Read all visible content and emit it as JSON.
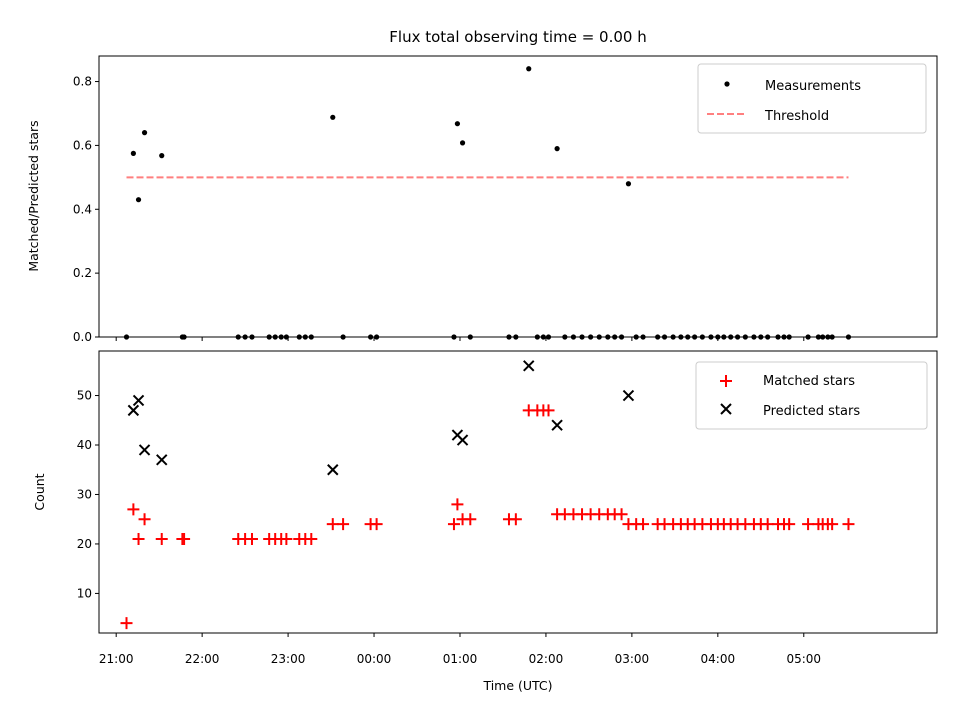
{
  "chart_data": {
    "title": "Flux total observing time = 0.00 h",
    "xlabel": "Time (UTC)",
    "x_unit": "hours since 00:00 UTC (negative = previous evening)",
    "xlim": [
      -3.2,
      6.55
    ],
    "x_ticks": [
      {
        "x": -3,
        "label": "21:00"
      },
      {
        "x": -2,
        "label": "22:00"
      },
      {
        "x": -1,
        "label": "23:00"
      },
      {
        "x": 0,
        "label": "00:00"
      },
      {
        "x": 1,
        "label": "01:00"
      },
      {
        "x": 2,
        "label": "02:00"
      },
      {
        "x": 3,
        "label": "03:00"
      },
      {
        "x": 4,
        "label": "04:00"
      },
      {
        "x": 5,
        "label": "05:00"
      }
    ],
    "panels": [
      {
        "type": "scatter",
        "ylabel": "Matched/Predicted stars",
        "ylim": [
          0,
          0.88
        ],
        "y_ticks": [
          0,
          0.2,
          0.4,
          0.6,
          0.8
        ],
        "legend_position": "top-right",
        "series": [
          {
            "name": "Measurements",
            "marker": "dot",
            "color": "#000000",
            "x": [
              -2.88,
              -2.8,
              -2.74,
              -2.67,
              -2.47,
              -2.23,
              -2.21,
              -1.58,
              -1.5,
              -1.42,
              -1.22,
              -1.15,
              -1.08,
              -1.02,
              -0.87,
              -0.8,
              -0.73,
              -0.48,
              -0.36,
              -0.04,
              0.03,
              0.93,
              0.97,
              1.03,
              1.12,
              1.57,
              1.65,
              1.8,
              1.9,
              1.97,
              2.03,
              2.13,
              2.22,
              2.32,
              2.42,
              2.52,
              2.62,
              2.72,
              2.8,
              2.88,
              2.96,
              3.05,
              3.13,
              3.3,
              3.38,
              3.48,
              3.57,
              3.65,
              3.73,
              3.82,
              3.92,
              4.0,
              4.07,
              4.15,
              4.23,
              4.32,
              4.42,
              4.5,
              4.58,
              4.7,
              4.77,
              4.83,
              5.05,
              5.17,
              5.22,
              5.28,
              5.33,
              5.52
            ],
            "y": [
              0,
              0.575,
              0.43,
              0.64,
              0.568,
              0,
              0,
              0,
              0,
              0,
              0,
              0,
              0,
              0,
              0,
              0,
              0,
              0.688,
              0,
              0,
              0,
              0,
              0.668,
              0.608,
              0,
              0,
              0,
              0.84,
              0,
              0,
              0,
              0.59,
              0,
              0,
              0,
              0,
              0,
              0,
              0,
              0,
              0.48,
              0,
              0,
              0,
              0,
              0,
              0,
              0,
              0,
              0,
              0,
              0,
              0,
              0,
              0,
              0,
              0,
              0,
              0,
              0,
              0,
              0,
              0,
              0,
              0,
              0,
              0,
              0
            ]
          },
          {
            "name": "Threshold",
            "style": "dashed",
            "color": "#ff7f7f",
            "x": [
              -2.88,
              5.52
            ],
            "y": [
              0.5,
              0.5
            ]
          }
        ]
      },
      {
        "type": "scatter",
        "ylabel": "Count",
        "ylim": [
          2,
          59
        ],
        "y_ticks": [
          10,
          20,
          30,
          40,
          50
        ],
        "legend_position": "top-right",
        "series": [
          {
            "name": "Matched stars",
            "marker": "plus",
            "color": "#ff0000",
            "x": [
              -2.88,
              -2.8,
              -2.74,
              -2.67,
              -2.47,
              -2.23,
              -2.21,
              -1.58,
              -1.5,
              -1.42,
              -1.22,
              -1.15,
              -1.08,
              -1.02,
              -0.87,
              -0.8,
              -0.73,
              -0.48,
              -0.36,
              -0.04,
              0.03,
              0.93,
              0.97,
              1.03,
              1.12,
              1.57,
              1.65,
              1.8,
              1.9,
              1.97,
              2.03,
              2.13,
              2.22,
              2.32,
              2.42,
              2.52,
              2.62,
              2.72,
              2.8,
              2.88,
              2.96,
              3.05,
              3.13,
              3.3,
              3.38,
              3.48,
              3.57,
              3.65,
              3.73,
              3.82,
              3.92,
              4.0,
              4.07,
              4.15,
              4.23,
              4.32,
              4.42,
              4.5,
              4.58,
              4.7,
              4.77,
              4.83,
              5.05,
              5.17,
              5.22,
              5.28,
              5.33,
              5.52
            ],
            "y": [
              4,
              27,
              21,
              25,
              21,
              21,
              21,
              21,
              21,
              21,
              21,
              21,
              21,
              21,
              21,
              21,
              21,
              24,
              24,
              24,
              24,
              24,
              28,
              25,
              25,
              25,
              25,
              47,
              47,
              47,
              47,
              26,
              26,
              26,
              26,
              26,
              26,
              26,
              26,
              26,
              24,
              24,
              24,
              24,
              24,
              24,
              24,
              24,
              24,
              24,
              24,
              24,
              24,
              24,
              24,
              24,
              24,
              24,
              24,
              24,
              24,
              24,
              24,
              24,
              24,
              24,
              24,
              24
            ]
          },
          {
            "name": "Predicted stars",
            "marker": "x",
            "color": "#000000",
            "x": [
              -2.8,
              -2.74,
              -2.67,
              -2.47,
              -0.48,
              0.97,
              1.03,
              1.8,
              2.13,
              2.96
            ],
            "y": [
              47,
              49,
              39,
              37,
              35,
              42,
              41,
              56,
              44,
              50
            ]
          }
        ]
      }
    ]
  }
}
